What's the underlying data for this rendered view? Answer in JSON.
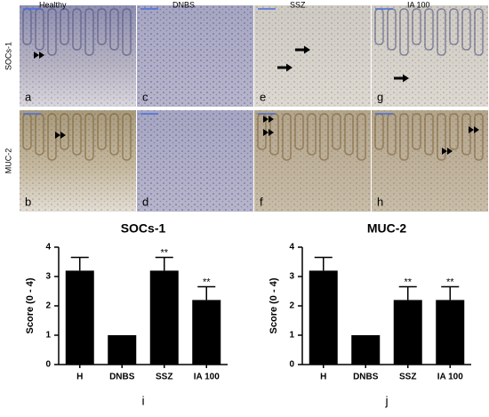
{
  "figure": {
    "columns": [
      "Healthy",
      "DNBS",
      "SSZ",
      "IA 100"
    ],
    "rows": [
      "SOCs-1",
      "MUC-2"
    ],
    "panels": [
      [
        "a",
        "c",
        "e",
        "g"
      ],
      [
        "b",
        "d",
        "f",
        "h"
      ]
    ]
  },
  "chart_data": [
    {
      "type": "bar",
      "title": "SOCs-1",
      "y_label": "Score (0 - 4)",
      "panel_label": "i",
      "categories": [
        "H",
        "DNBS",
        "SSZ",
        "IA 100"
      ],
      "values": [
        3.2,
        1,
        3.2,
        2.2
      ],
      "errors": [
        0.45,
        null,
        0.45,
        0.45
      ],
      "annotations": [
        null,
        null,
        "**",
        "**"
      ],
      "color": "#000000",
      "ylim": [
        0,
        4
      ],
      "yticks": [
        0,
        1,
        2,
        3,
        4
      ]
    },
    {
      "type": "bar",
      "title": "MUC-2",
      "y_label": "Score (0 - 4)",
      "panel_label": "j",
      "categories": [
        "H",
        "DNBS",
        "SSZ",
        "IA 100"
      ],
      "values": [
        3.2,
        1,
        2.2,
        2.2
      ],
      "errors": [
        0.45,
        null,
        0.45,
        0.45
      ],
      "annotations": [
        null,
        null,
        "**",
        "**"
      ],
      "color": "#000000",
      "ylim": [
        0,
        4
      ],
      "yticks": [
        0,
        1,
        2,
        3,
        4
      ]
    }
  ]
}
